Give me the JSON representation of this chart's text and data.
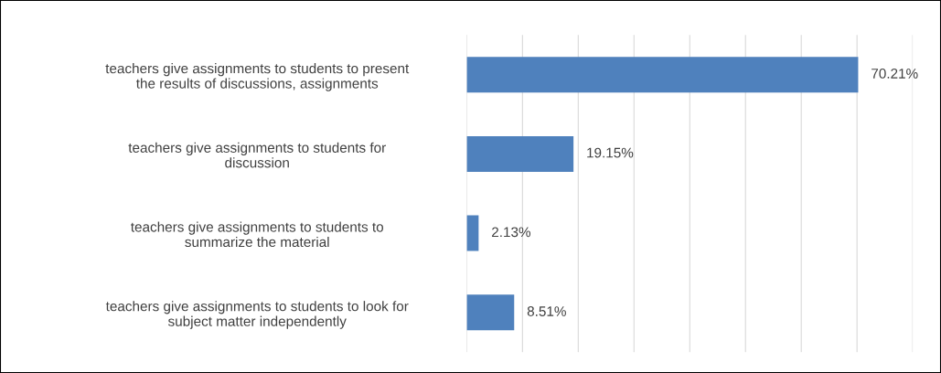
{
  "chart_data": {
    "type": "bar",
    "orientation": "horizontal",
    "categories": [
      "teachers give assignments to students to present\nthe results of discussions, assignments",
      "teachers give assignments to students for\ndiscussion",
      "teachers give assignments to students to\nsummarize the material",
      "teachers give assignments to students to look for\nsubject matter independently"
    ],
    "values": [
      70.21,
      19.15,
      2.13,
      8.51
    ],
    "value_labels": [
      "70.21%",
      "19.15%",
      "2.13%",
      "8.51%"
    ],
    "color": "#4f81bd",
    "xlim": [
      0,
      80
    ],
    "xticks": [
      {
        "value": 0,
        "label": null
      },
      {
        "value": 10,
        "label": null
      },
      {
        "value": 20,
        "label": null
      },
      {
        "value": 30,
        "label": null
      },
      {
        "value": 40,
        "label": null
      },
      {
        "value": 50,
        "label": null
      },
      {
        "value": 60,
        "label": null
      },
      {
        "value": 70,
        "label": null
      },
      {
        "value": 80,
        "label": null
      }
    ],
    "grid": "x",
    "tick_labels": "y",
    "legend": false
  }
}
